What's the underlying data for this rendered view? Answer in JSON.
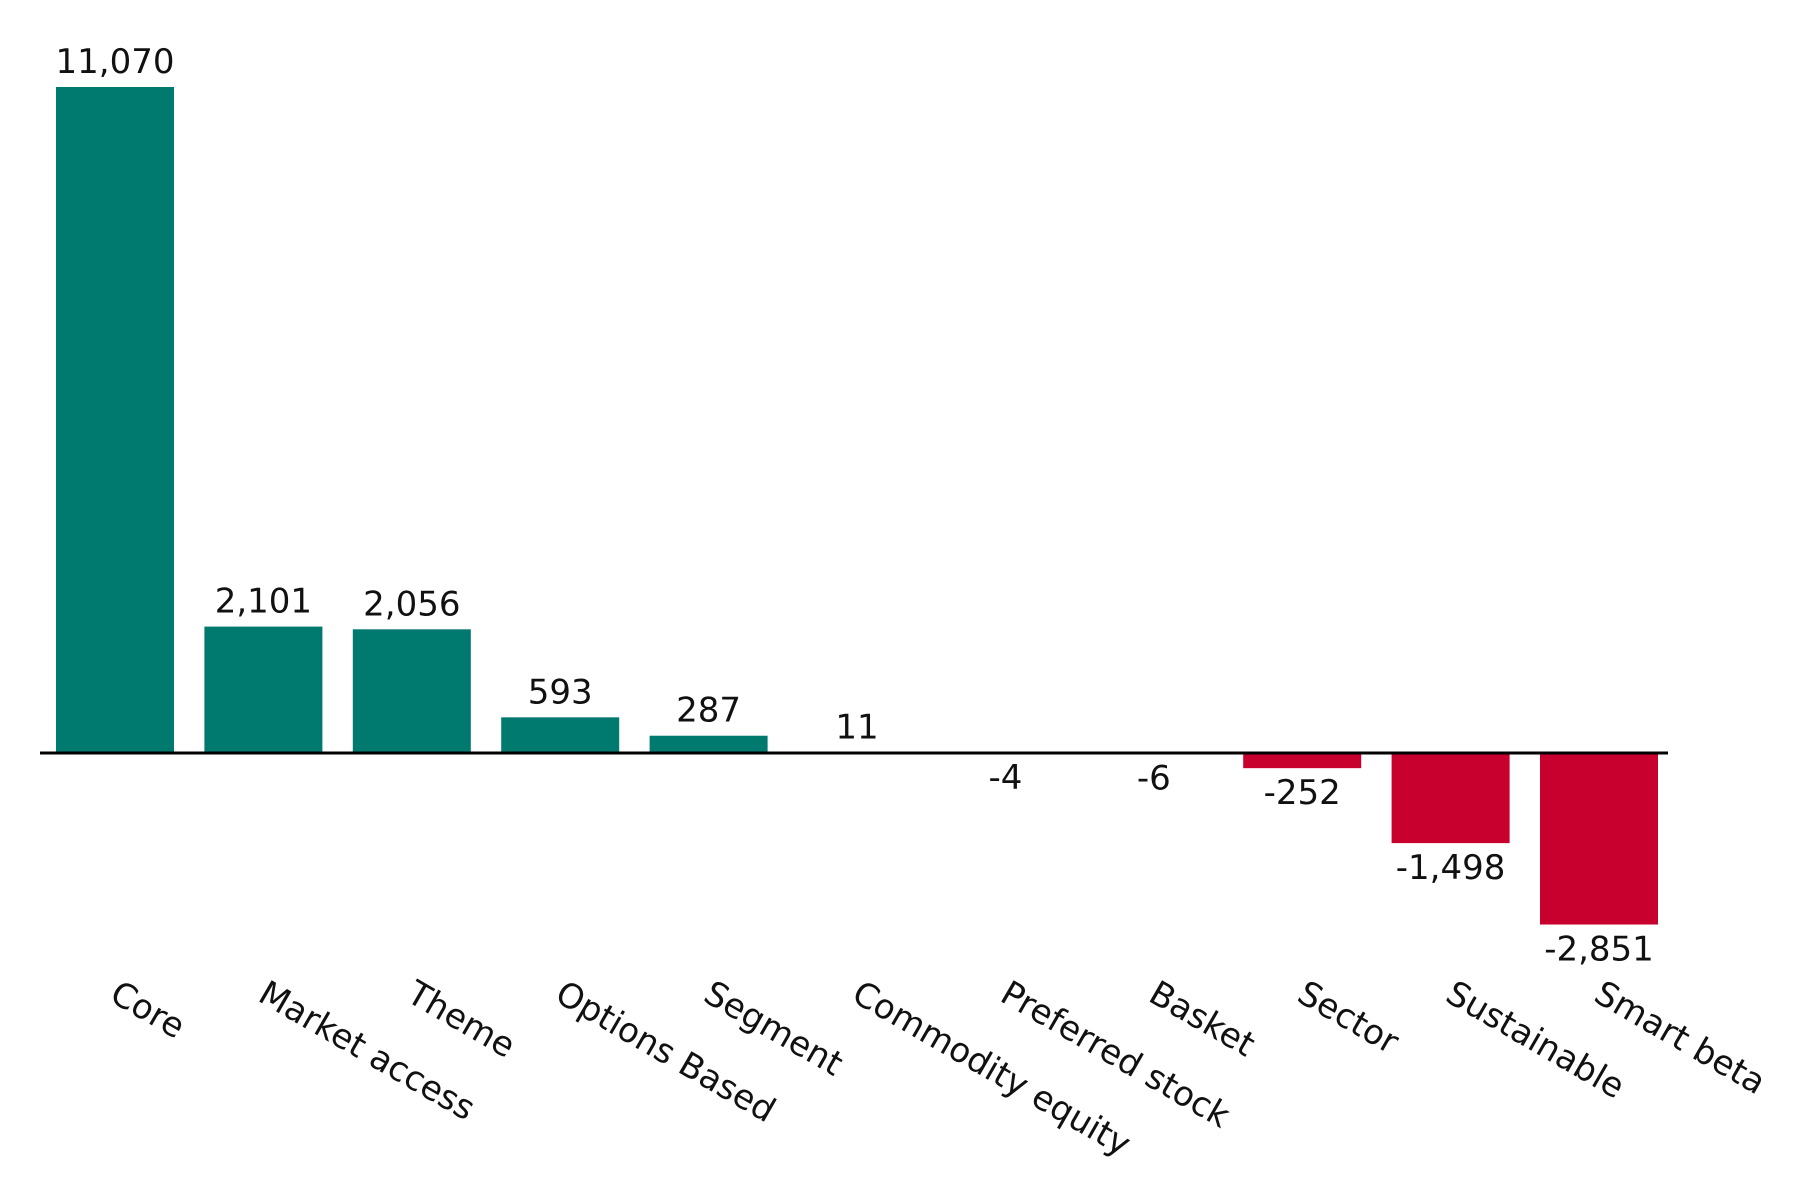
{
  "chart_data": {
    "type": "bar",
    "title": "",
    "xlabel": "",
    "ylabel": "",
    "categories": [
      "Core",
      "Market access",
      "Theme",
      "Options Based",
      "Segment",
      "Commodity equity",
      "Preferred stock",
      "Basket",
      "Sector",
      "Sustainable",
      "Smart beta"
    ],
    "values": [
      11070,
      2101,
      2056,
      593,
      287,
      11,
      -4,
      -6,
      -252,
      -1498,
      -2851
    ],
    "value_labels": [
      "11,070",
      "2,101",
      "2,056",
      "593",
      "287",
      "11",
      "-4",
      "-6",
      "-252",
      "-1,498",
      "-2,851"
    ],
    "ylim": [
      -2851,
      11070
    ],
    "grid": false,
    "legend": "none",
    "colors": {
      "positive": "#00796F",
      "negative": "#C8002D",
      "axis": "#000000",
      "near_zero": "#cfcfcf"
    }
  }
}
